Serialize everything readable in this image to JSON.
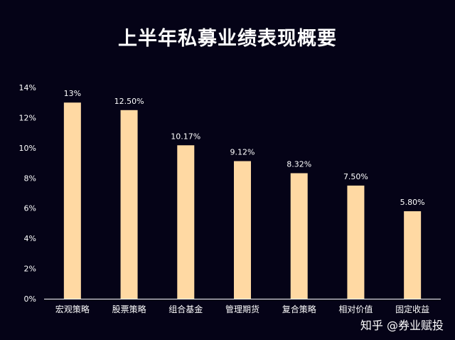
{
  "chart_data": {
    "type": "bar",
    "title": "上半年私募业绩表现概要",
    "categories": [
      "宏观策略",
      "股票策略",
      "组合基金",
      "管理期货",
      "复合策略",
      "相对价值",
      "固定收益"
    ],
    "values": [
      13,
      12.5,
      10.17,
      9.12,
      8.32,
      7.5,
      5.8
    ],
    "data_labels": [
      "13%",
      "12.50%",
      "10.17%",
      "9.12%",
      "8.32%",
      "7.50%",
      "5.80%"
    ],
    "y_ticks": [
      0,
      2,
      4,
      6,
      8,
      10,
      12,
      14
    ],
    "y_tick_labels": [
      "0%",
      "2%",
      "4%",
      "6%",
      "8%",
      "10%",
      "12%",
      "14%"
    ],
    "ylim": [
      0,
      14
    ],
    "grid": false,
    "legend": "none",
    "xlabel": "",
    "ylabel": "",
    "colors": {
      "background": "#050317",
      "bar": "#ffd9a3",
      "text": "#ffffff",
      "axis": "#ffffff"
    }
  },
  "watermark": "知乎 @券业赋投"
}
